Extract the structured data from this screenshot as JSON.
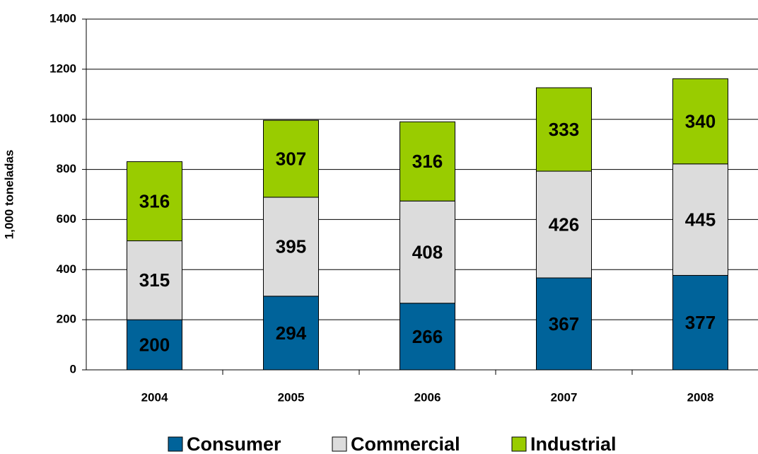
{
  "chart_data": {
    "type": "stacked_bar",
    "y_label": "1,000 toneladas",
    "categories": [
      "2004",
      "2005",
      "2006",
      "2007",
      "2008"
    ],
    "series": [
      {
        "name": "Consumer",
        "color": "#00639a",
        "values": [
          200,
          294,
          266,
          367,
          377
        ]
      },
      {
        "name": "Commercial",
        "color": "#dcdcdc",
        "values": [
          315,
          395,
          408,
          426,
          445
        ]
      },
      {
        "name": "Industrial",
        "color": "#99cc00",
        "values": [
          316,
          307,
          316,
          333,
          340
        ]
      }
    ],
    "ylim": [
      0,
      1400
    ],
    "yticks": [
      0,
      200,
      400,
      600,
      800,
      1000,
      1200,
      1400
    ],
    "grid": true,
    "legend": "bottom"
  }
}
